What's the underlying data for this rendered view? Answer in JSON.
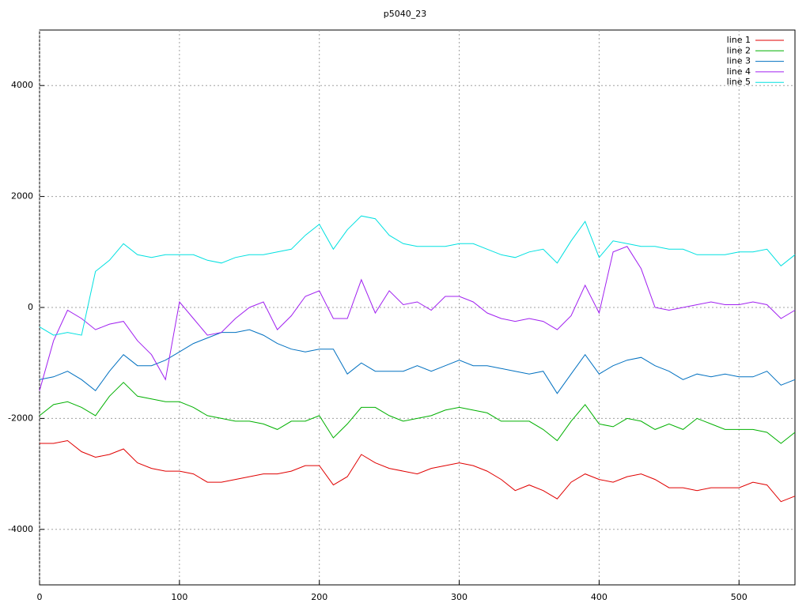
{
  "chart_data": {
    "type": "line",
    "title": "p5040_23",
    "x": [
      0,
      10,
      20,
      30,
      40,
      50,
      60,
      70,
      80,
      90,
      100,
      110,
      120,
      130,
      140,
      150,
      160,
      170,
      180,
      190,
      200,
      210,
      220,
      230,
      240,
      250,
      260,
      270,
      280,
      290,
      300,
      310,
      320,
      330,
      340,
      350,
      360,
      370,
      380,
      390,
      400,
      410,
      420,
      430,
      440,
      450,
      460,
      470,
      480,
      490,
      500,
      510,
      520,
      530,
      540
    ],
    "xlim": [
      0,
      540
    ],
    "ylim": [
      -5000,
      5000
    ],
    "xticks": [
      0,
      100,
      200,
      300,
      400,
      500
    ],
    "yticks": [
      -4000,
      -2000,
      0,
      2000,
      4000
    ],
    "grid": true,
    "legend": "top-right",
    "series": [
      {
        "name": "line 1",
        "color": "#e00000",
        "values": [
          -2450,
          -2450,
          -2400,
          -2600,
          -2700,
          -2650,
          -2550,
          -2800,
          -2900,
          -2950,
          -2950,
          -3000,
          -3150,
          -3150,
          -3100,
          -3050,
          -3000,
          -3000,
          -2950,
          -2850,
          -2850,
          -3200,
          -3050,
          -2650,
          -2800,
          -2900,
          -2950,
          -3000,
          -2900,
          -2850,
          -2800,
          -2850,
          -2950,
          -3100,
          -3300,
          -3200,
          -3300,
          -3450,
          -3150,
          -3000,
          -3100,
          -3150,
          -3050,
          -3000,
          -3100,
          -3250,
          -3250,
          -3300,
          -3250,
          -3250,
          -3250,
          -3150,
          -3200,
          -3500,
          -3400
        ]
      },
      {
        "name": "line 2",
        "color": "#00b000",
        "values": [
          -1950,
          -1750,
          -1700,
          -1800,
          -1950,
          -1600,
          -1350,
          -1600,
          -1650,
          -1700,
          -1700,
          -1800,
          -1950,
          -2000,
          -2050,
          -2050,
          -2100,
          -2200,
          -2050,
          -2050,
          -1950,
          -2350,
          -2100,
          -1800,
          -1800,
          -1950,
          -2050,
          -2000,
          -1950,
          -1850,
          -1800,
          -1850,
          -1900,
          -2050,
          -2050,
          -2050,
          -2200,
          -2400,
          -2050,
          -1750,
          -2100,
          -2150,
          -2000,
          -2050,
          -2200,
          -2100,
          -2200,
          -2000,
          -2100,
          -2200,
          -2200,
          -2200,
          -2250,
          -2450,
          -2250
        ]
      },
      {
        "name": "line 3",
        "color": "#0070c0",
        "values": [
          -1300,
          -1250,
          -1150,
          -1300,
          -1500,
          -1150,
          -850,
          -1050,
          -1050,
          -950,
          -800,
          -650,
          -550,
          -450,
          -450,
          -400,
          -500,
          -650,
          -750,
          -800,
          -750,
          -750,
          -1200,
          -1000,
          -1150,
          -1150,
          -1150,
          -1050,
          -1150,
          -1050,
          -950,
          -1050,
          -1050,
          -1100,
          -1150,
          -1200,
          -1150,
          -1550,
          -1200,
          -850,
          -1200,
          -1050,
          -950,
          -900,
          -1050,
          -1150,
          -1300,
          -1200,
          -1250,
          -1200,
          -1250,
          -1250,
          -1150,
          -1400,
          -1300
        ]
      },
      {
        "name": "line 4",
        "color": "#a020f0",
        "values": [
          -1500,
          -600,
          -50,
          -200,
          -400,
          -300,
          -250,
          -600,
          -850,
          -1300,
          100,
          -200,
          -500,
          -450,
          -200,
          0,
          100,
          -400,
          -150,
          200,
          300,
          -200,
          -200,
          500,
          -100,
          300,
          50,
          100,
          -50,
          200,
          200,
          100,
          -100,
          -200,
          -250,
          -200,
          -250,
          -400,
          -150,
          400,
          -100,
          1000,
          1100,
          700,
          0,
          -50,
          0,
          50,
          100,
          50,
          50,
          100,
          50,
          -200,
          -50
        ]
      },
      {
        "name": "line 5",
        "color": "#00e0e0",
        "values": [
          -350,
          -500,
          -450,
          -500,
          650,
          850,
          1150,
          950,
          900,
          950,
          950,
          950,
          850,
          800,
          900,
          950,
          950,
          1000,
          1050,
          1300,
          1500,
          1050,
          1400,
          1650,
          1600,
          1300,
          1150,
          1100,
          1100,
          1100,
          1150,
          1150,
          1050,
          950,
          900,
          1000,
          1050,
          800,
          1200,
          1550,
          900,
          1200,
          1150,
          1100,
          1100,
          1050,
          1050,
          950,
          950,
          950,
          1000,
          1000,
          1050,
          750,
          950
        ]
      }
    ]
  }
}
